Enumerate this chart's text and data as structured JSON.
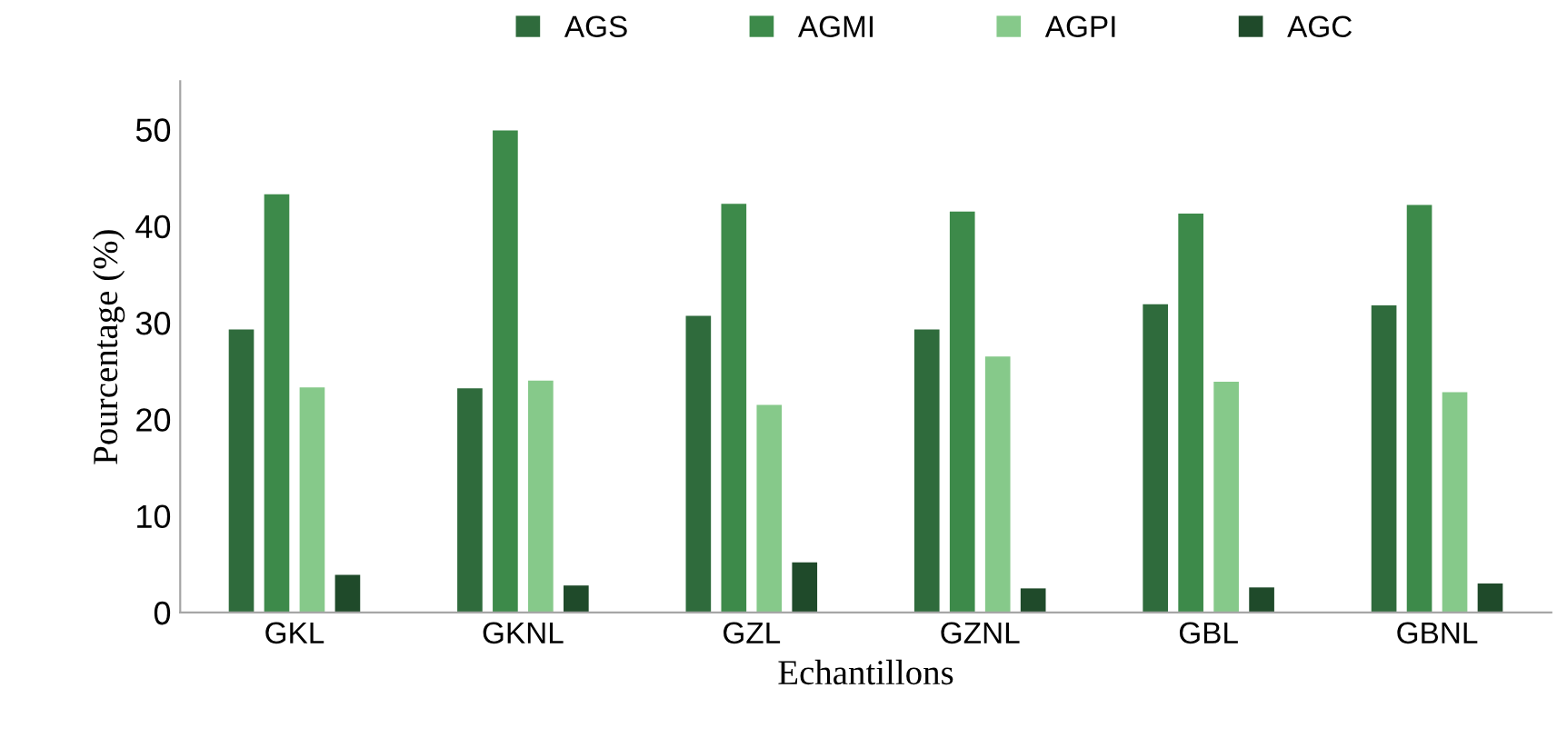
{
  "chart_data": {
    "type": "bar",
    "xlabel": "Echantillons",
    "ylabel": "Pourcentage (%)",
    "categories": [
      "GKL",
      "GKNL",
      "GZL",
      "GZNL",
      "GBL",
      "GBNL"
    ],
    "series": [
      {
        "name": "AGS",
        "color": "#2f6b3c",
        "values": [
          29.3,
          23.2,
          30.7,
          29.3,
          31.9,
          31.8
        ]
      },
      {
        "name": "AGMI",
        "color": "#3d8a4a",
        "values": [
          43.3,
          49.9,
          42.3,
          41.5,
          41.3,
          42.2
        ]
      },
      {
        "name": "AGPI",
        "color": "#86c98a",
        "values": [
          23.3,
          24.0,
          21.5,
          26.5,
          23.9,
          22.8
        ]
      },
      {
        "name": "AGC",
        "color": "#1f4a2a",
        "values": [
          3.9,
          2.8,
          5.2,
          2.5,
          2.6,
          3.0
        ]
      }
    ],
    "ylim": [
      0,
      55
    ],
    "yticks": [
      0,
      10,
      20,
      30,
      40,
      50
    ],
    "grid": false,
    "legend": "top"
  }
}
